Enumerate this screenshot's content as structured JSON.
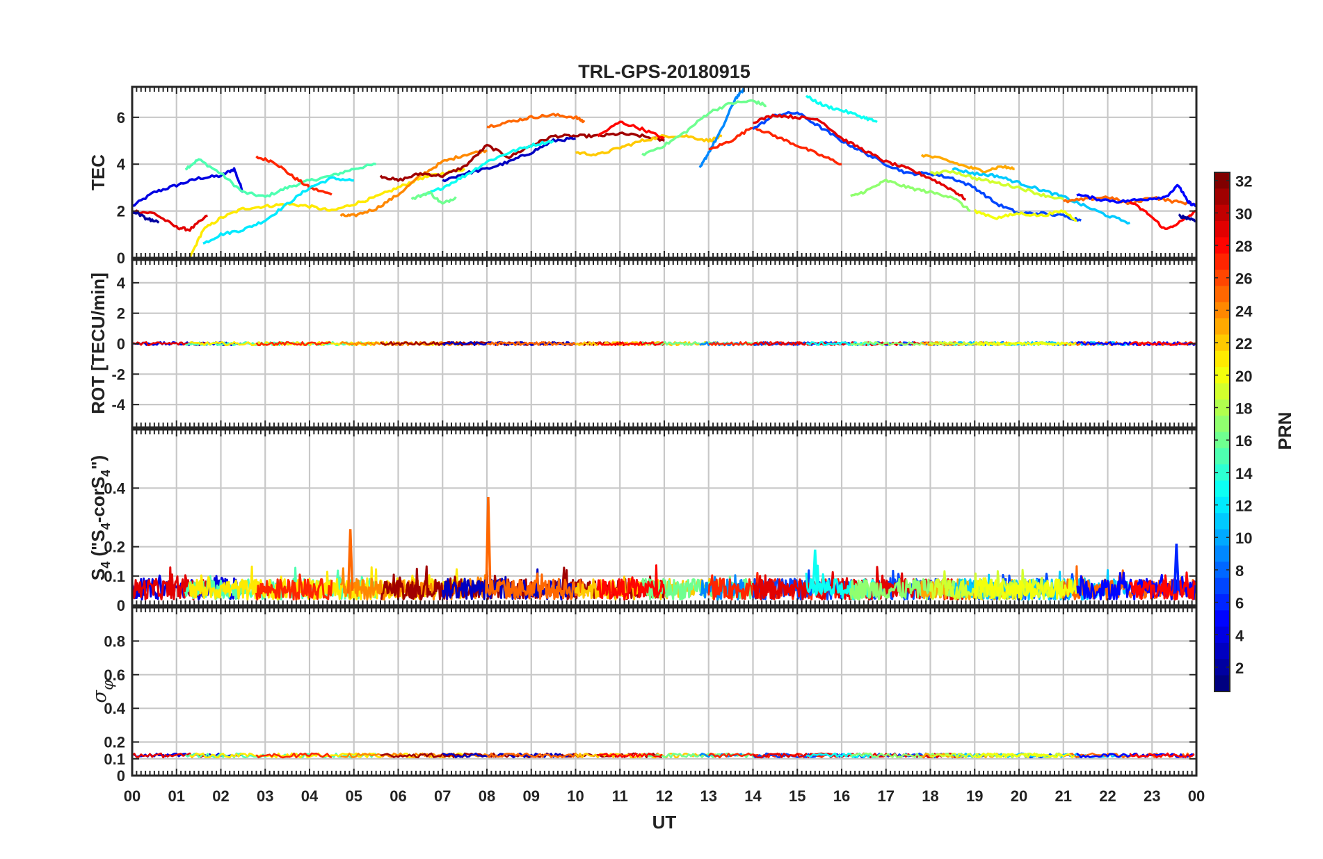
{
  "chart_data": {
    "type": "line",
    "title": "TRL-GPS-20180915",
    "xlabel": "UT",
    "x_ticks": [
      "00",
      "01",
      "02",
      "03",
      "04",
      "05",
      "06",
      "07",
      "08",
      "09",
      "10",
      "11",
      "12",
      "13",
      "14",
      "15",
      "16",
      "17",
      "18",
      "19",
      "20",
      "21",
      "22",
      "23",
      "00"
    ],
    "xlim": [
      0,
      24
    ],
    "grid": true,
    "colorbar": {
      "label": "PRN",
      "range": [
        1,
        32
      ],
      "ticks": [
        "2",
        "4",
        "6",
        "8",
        "10",
        "12",
        "14",
        "16",
        "18",
        "20",
        "22",
        "24",
        "26",
        "28",
        "30",
        "32"
      ],
      "colormap": "jet"
    },
    "panels": [
      {
        "name": "tec",
        "ylabel": "TEC",
        "ylim": [
          0,
          7.3
        ],
        "yticks": [
          "0",
          "2",
          "4",
          "6"
        ],
        "series": [
          {
            "prn": 4,
            "x": [
              0,
              0.5,
              1.0,
              1.5,
              2.0,
              2.3,
              2.5
            ],
            "y": [
              2.2,
              2.8,
              3.1,
              3.4,
              3.5,
              3.8,
              2.8
            ]
          },
          {
            "prn": 15,
            "x": [
              1.2,
              1.5,
              2.0,
              2.5,
              3.0,
              3.5,
              4.0,
              4.5,
              5.0,
              5.5
            ],
            "y": [
              3.8,
              4.2,
              3.6,
              2.8,
              2.6,
              3.0,
              3.3,
              3.5,
              3.8,
              4.0
            ]
          },
          {
            "prn": 27,
            "x": [
              2.8,
              3.2,
              3.6,
              4.0,
              4.5
            ],
            "y": [
              4.3,
              4.1,
              3.5,
              3.0,
              2.7
            ]
          },
          {
            "prn": 29,
            "x": [
              0,
              0.5,
              1.0,
              1.3,
              1.7
            ],
            "y": [
              2.0,
              1.9,
              1.3,
              1.2,
              1.8
            ]
          },
          {
            "prn": 21,
            "x": [
              1.3,
              1.6,
              2.0,
              2.5,
              3.0,
              3.5,
              4.0,
              4.5,
              5.0,
              5.5,
              6.0,
              6.5,
              7.0,
              7.5
            ],
            "y": [
              0,
              1.2,
              1.7,
              2.1,
              2.2,
              2.3,
              2.2,
              2.0,
              2.3,
              2.6,
              3.0,
              3.4,
              3.6,
              3.8
            ]
          },
          {
            "prn": 12,
            "x": [
              1.6,
              2.0,
              2.5,
              3.0,
              3.5,
              4.0,
              4.5,
              5.0
            ],
            "y": [
              0.6,
              1.0,
              1.2,
              1.6,
              2.3,
              3.0,
              3.4,
              3.3
            ]
          },
          {
            "prn": 24,
            "x": [
              4.7,
              5.0,
              5.5,
              6.0,
              6.5,
              7.0,
              7.5,
              8.0
            ],
            "y": [
              1.8,
              1.8,
              2.1,
              2.7,
              3.5,
              4.1,
              4.4,
              4.6
            ]
          },
          {
            "prn": 31,
            "x": [
              5.6,
              6.0,
              6.5,
              7.0,
              7.5,
              8.0,
              8.5,
              9.0,
              9.5,
              10.0,
              10.5,
              11.0,
              11.5,
              12.0
            ],
            "y": [
              3.5,
              3.3,
              3.6,
              3.5,
              3.9,
              4.8,
              4.3,
              4.8,
              5.2,
              5.2,
              5.2,
              5.3,
              5.2,
              5.0
            ]
          },
          {
            "prn": 3,
            "x": [
              7.0,
              7.5,
              8.0,
              8.5,
              9.0,
              9.5,
              10.0
            ],
            "y": [
              3.3,
              3.6,
              3.8,
              4.1,
              4.5,
              5.0,
              5.1
            ]
          },
          {
            "prn": 13,
            "x": [
              6.5,
              7.0,
              7.5,
              8.0,
              8.5,
              9.0,
              9.5
            ],
            "y": [
              2.6,
              3.0,
              3.5,
              4.1,
              4.5,
              4.8,
              5.0
            ]
          },
          {
            "prn": 16,
            "x": [
              6.3,
              6.7,
              7.0,
              7.3
            ],
            "y": [
              2.5,
              2.8,
              2.3,
              2.6
            ]
          },
          {
            "prn": 25,
            "x": [
              8.0,
              8.5,
              9.0,
              9.5,
              10.0,
              10.2
            ],
            "y": [
              5.6,
              5.8,
              6.0,
              6.1,
              6.0,
              5.8
            ]
          },
          {
            "prn": 22,
            "x": [
              10.0,
              10.5,
              11.0,
              11.5,
              12.0,
              12.5,
              13.0,
              13.3
            ],
            "y": [
              4.5,
              4.4,
              4.7,
              5.0,
              5.2,
              5.2,
              5.0,
              5.2
            ]
          },
          {
            "prn": 9,
            "x": [
              12.8,
              13.0,
              13.3,
              13.6,
              13.8
            ],
            "y": [
              3.8,
              4.5,
              5.5,
              6.8,
              7.2
            ]
          },
          {
            "prn": 16,
            "x": [
              11.5,
              12.0,
              12.5,
              13.0,
              13.5,
              14.0,
              14.3
            ],
            "y": [
              4.4,
              4.8,
              5.4,
              6.2,
              6.6,
              6.7,
              6.5
            ]
          },
          {
            "prn": 28,
            "x": [
              10.5,
              11.0,
              11.5,
              12.0
            ],
            "y": [
              5.2,
              5.8,
              5.5,
              5.1
            ]
          },
          {
            "prn": 27,
            "x": [
              13.0,
              13.5,
              14.0,
              14.5,
              15.0,
              15.5,
              16.0
            ],
            "y": [
              4.6,
              5.0,
              5.6,
              5.2,
              4.8,
              4.4,
              4.0
            ]
          },
          {
            "prn": 7,
            "x": [
              14.0,
              14.5,
              15.0,
              15.5,
              16.0,
              16.5,
              17.0,
              17.5,
              18.0,
              18.5,
              19.0,
              19.5,
              20.0,
              20.5,
              21.0,
              21.4
            ],
            "y": [
              5.5,
              6.1,
              6.2,
              5.6,
              5.0,
              4.5,
              4.0,
              3.6,
              3.6,
              3.4,
              3.0,
              2.3,
              1.9,
              1.9,
              1.8,
              1.6
            ]
          },
          {
            "prn": 29,
            "x": [
              14.0,
              14.5,
              15.0,
              15.5,
              16.0,
              16.5,
              17.0,
              17.5,
              18.0,
              18.5,
              18.8
            ],
            "y": [
              5.8,
              6.1,
              6.0,
              5.9,
              5.1,
              4.6,
              4.1,
              3.8,
              3.4,
              2.9,
              2.5
            ]
          },
          {
            "prn": 13,
            "x": [
              15.2,
              15.6,
              16.0,
              16.5,
              16.8
            ],
            "y": [
              6.9,
              6.5,
              6.3,
              6.0,
              5.8
            ]
          },
          {
            "prn": 17,
            "x": [
              16.2,
              16.6,
              17.0,
              17.5,
              18.0,
              18.5,
              18.9
            ],
            "y": [
              2.6,
              2.9,
              3.3,
              3.0,
              2.8,
              2.6,
              2.0
            ]
          },
          {
            "prn": 23,
            "x": [
              17.8,
              18.3,
              18.8,
              19.2,
              19.6,
              19.9
            ],
            "y": [
              4.4,
              4.2,
              3.9,
              3.7,
              3.9,
              3.8
            ]
          },
          {
            "prn": 20,
            "x": [
              19.0,
              19.5,
              20.0,
              20.5,
              21.0,
              21.3
            ],
            "y": [
              2.0,
              1.7,
              1.9,
              1.8,
              2.0,
              1.6
            ]
          },
          {
            "prn": 11,
            "x": [
              18.5,
              19.0,
              19.5,
              20.0,
              20.5,
              21.0,
              21.5,
              22.0,
              22.5
            ],
            "y": [
              3.8,
              3.6,
              3.5,
              3.2,
              2.9,
              2.6,
              2.2,
              1.8,
              1.5
            ]
          },
          {
            "prn": 19,
            "x": [
              18.0,
              18.5,
              19.0,
              19.5,
              20.0,
              20.5,
              21.0
            ],
            "y": [
              3.6,
              3.7,
              3.4,
              3.2,
              3.0,
              2.7,
              2.5
            ]
          },
          {
            "prn": 25,
            "x": [
              21.0,
              21.5,
              22.0,
              22.5,
              23.0,
              23.5,
              24.0
            ],
            "y": [
              2.4,
              2.5,
              2.6,
              2.3,
              2.6,
              2.4,
              2.3
            ]
          },
          {
            "prn": 5,
            "x": [
              21.3,
              21.8,
              22.3,
              22.8,
              23.3,
              23.6,
              23.8,
              24.0
            ],
            "y": [
              2.7,
              2.5,
              2.4,
              2.5,
              2.6,
              3.1,
              2.4,
              2.2
            ]
          },
          {
            "prn": 28,
            "x": [
              22.5,
              22.9,
              23.3,
              23.7,
              24.0
            ],
            "y": [
              2.4,
              1.9,
              1.2,
              1.6,
              2.0
            ]
          },
          {
            "prn": 2,
            "x": [
              0,
              0.3,
              0.6
            ],
            "y": [
              2.0,
              1.7,
              1.5
            ]
          },
          {
            "prn": 2,
            "x": [
              23.6,
              23.8,
              24.0
            ],
            "y": [
              1.8,
              1.7,
              1.6
            ]
          }
        ]
      },
      {
        "name": "rot",
        "ylabel": "ROT [TECU/min]",
        "ylim": [
          -5.5,
          5.5
        ],
        "yticks": [
          "-4",
          "-2",
          "0",
          "2",
          "4"
        ],
        "note": "All PRN traces stay within about ±0.15 TECU/min of zero across 00-24 UT"
      },
      {
        "name": "s4",
        "ylabel": "S4 (\"S4-corS4\")",
        "ylim": [
          0,
          0.6
        ],
        "yticks": [
          "0",
          "0.1",
          "0.2",
          "0.4"
        ],
        "note": "Dense background of values mostly 0.02-0.12 for all PRNs",
        "peaks": [
          {
            "prn": 25,
            "x": 4.92,
            "y": 0.26
          },
          {
            "prn": 25,
            "x": 8.03,
            "y": 0.37
          },
          {
            "prn": 13,
            "x": 15.4,
            "y": 0.19
          },
          {
            "prn": 6,
            "x": 23.55,
            "y": 0.21
          }
        ]
      },
      {
        "name": "sigma_phi",
        "ylabel": "σφ",
        "ylim": [
          0,
          1.0
        ],
        "yticks": [
          "0",
          "0.1",
          "0.2",
          "0.4",
          "0.6",
          "0.8"
        ],
        "note": "All PRN traces near 0.11-0.13 throughout the day"
      }
    ]
  }
}
